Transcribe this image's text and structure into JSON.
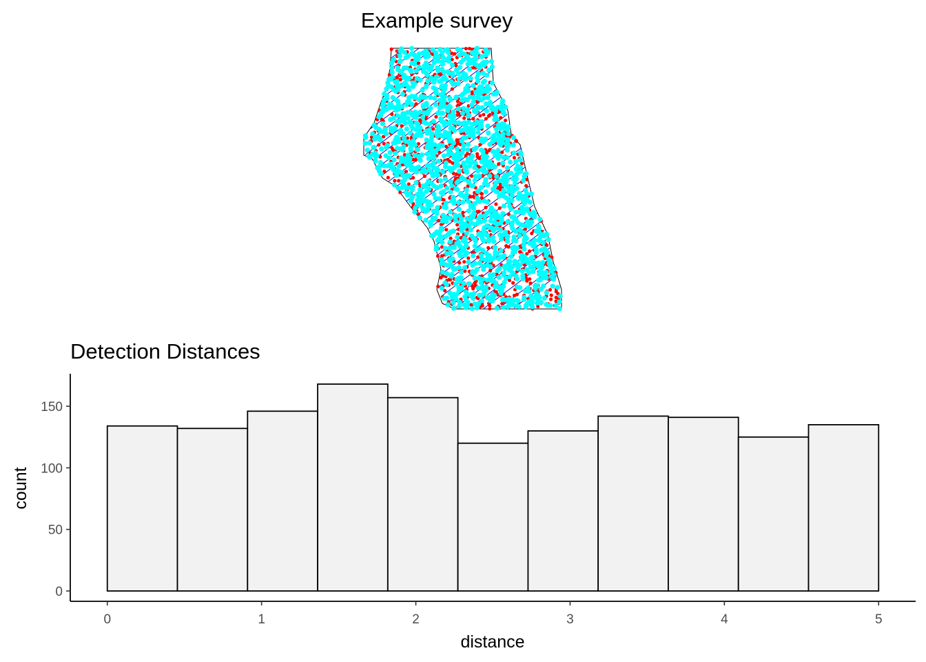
{
  "survey_panel": {
    "title": "Example survey",
    "colors": {
      "transects": "#0000cd",
      "animals": "#ff0000",
      "detections": "#00ffff",
      "boundary": "#000000"
    }
  },
  "histogram_panel": {
    "title": "Detection Distances",
    "xlabel": "distance",
    "ylabel": "count"
  },
  "chart_data": [
    {
      "type": "scatter",
      "title": "Example survey",
      "description_series": [
        "survey region",
        "transect lines",
        "animals",
        "detections"
      ],
      "xlabel": "",
      "ylabel": "",
      "grid": false,
      "axes_shown": false
    },
    {
      "type": "bar",
      "subtype": "histogram",
      "title": "Detection Distances",
      "xlabel": "distance",
      "ylabel": "count",
      "bin_edges": [
        0,
        0.4545,
        0.9091,
        1.3636,
        1.8182,
        2.2727,
        2.7273,
        3.1818,
        3.6364,
        4.0909,
        4.5455,
        5.0
      ],
      "values": [
        134,
        132,
        146,
        168,
        157,
        120,
        130,
        142,
        141,
        125,
        135
      ],
      "xlim": [
        -0.24,
        5.24
      ],
      "ylim": [
        -8.4,
        176.4
      ],
      "xticks": [
        0,
        1,
        2,
        3,
        4,
        5
      ],
      "yticks": [
        0,
        50,
        100,
        150
      ],
      "bar_fill": "#f2f2f2",
      "bar_stroke": "#000000",
      "grid": false
    }
  ]
}
